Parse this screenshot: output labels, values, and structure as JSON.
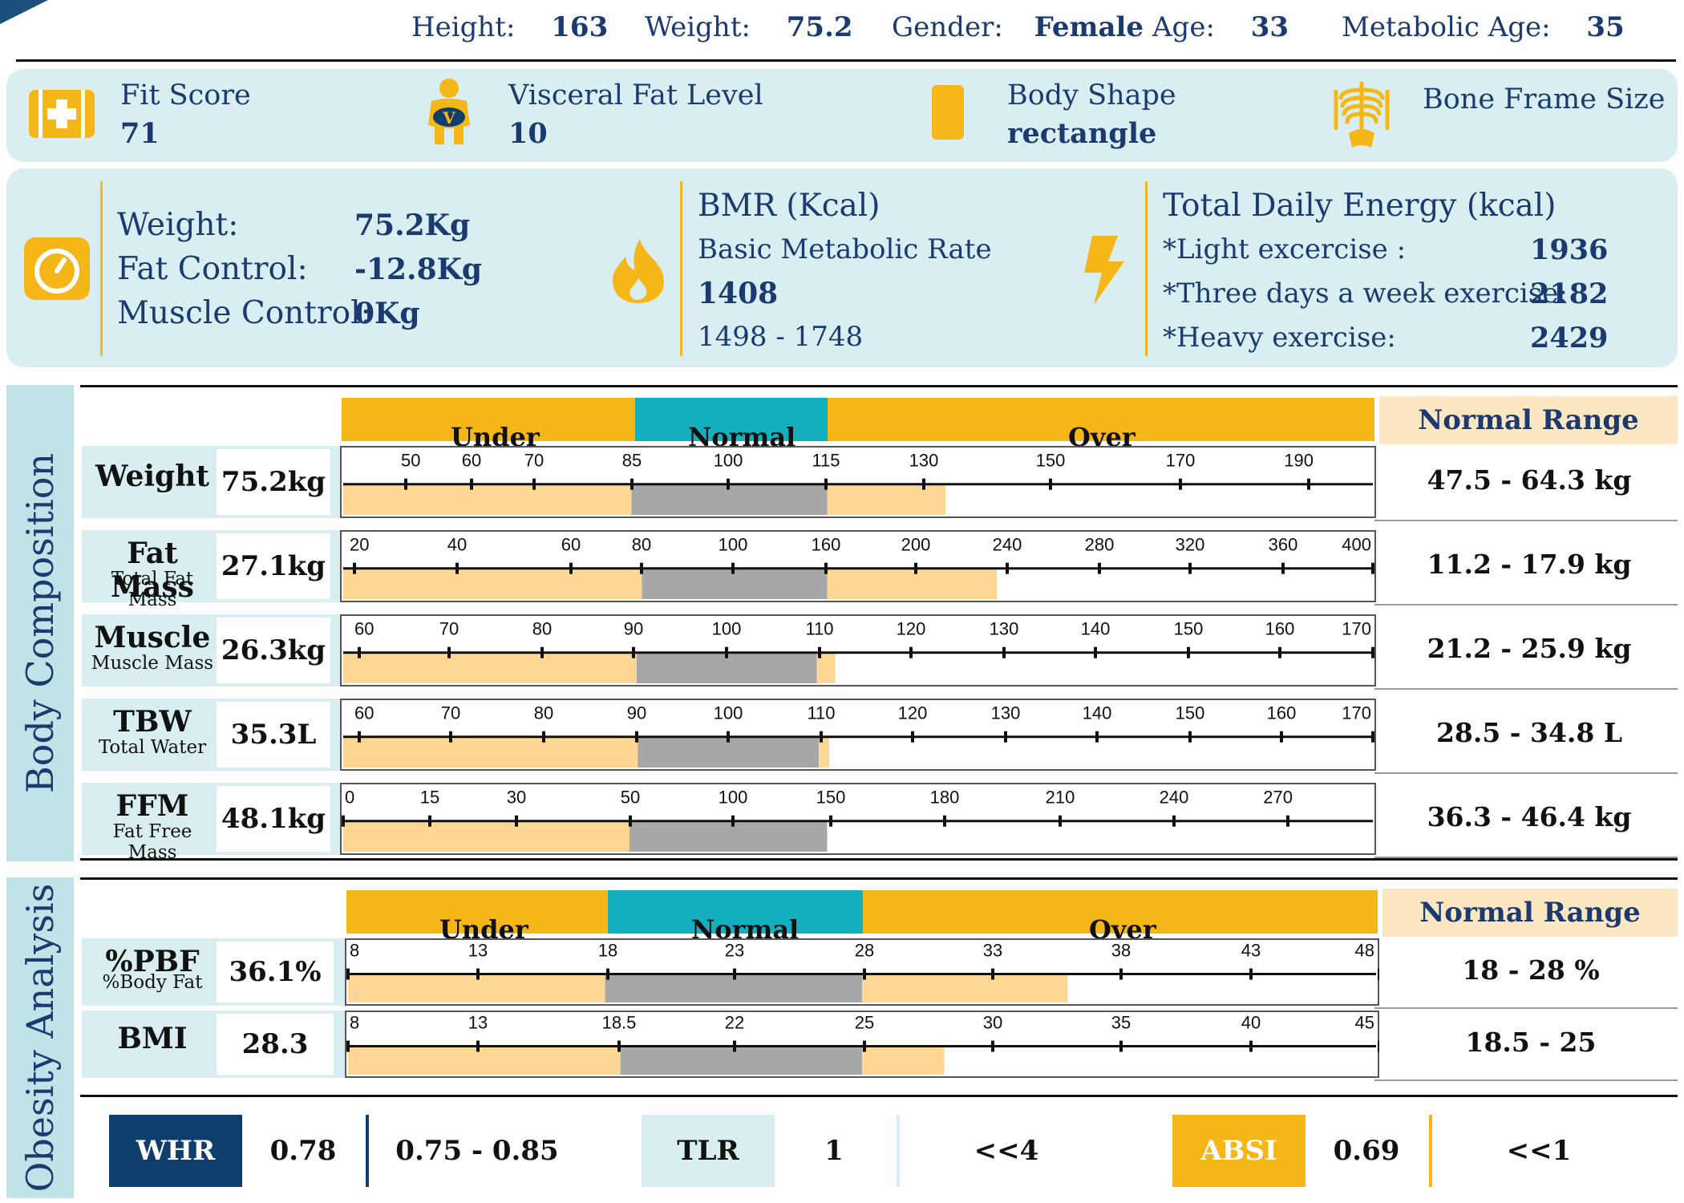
{
  "header": {
    "height_label": "Height:",
    "height": "163",
    "weight_label": "Weight:",
    "weight": "75.2",
    "gender_label": "Gender:",
    "gender": "Female",
    "age_label": "Age:",
    "age": "33",
    "metabolic_age_label": "Metabolic Age:",
    "metabolic_age": "35"
  },
  "summary": {
    "fit_score_label": "Fit Score",
    "fit_score": "71",
    "visceral_label": "Visceral Fat Level",
    "visceral": "10",
    "visceral_badge": "V",
    "body_shape_label": "Body Shape",
    "body_shape": "rectangle",
    "bone_label": "Bone Frame Size"
  },
  "energy": {
    "weight_label": "Weight:",
    "weight": "75.2Kg",
    "fat_control_label": "Fat Control:",
    "fat_control": "-12.8Kg",
    "muscle_control_label": "Muscle Control:",
    "muscle_control": "0Kg",
    "bmr_title": "BMR (Kcal)",
    "bmr_subtitle": "Basic Metabolic Rate",
    "bmr": "1408",
    "bmr_range": "1498 - 1748",
    "tde_title": "Total Daily Energy (kcal)",
    "light_label": "*Light excercise :",
    "light": "1936",
    "three_label": "*Three days a week exercise:",
    "three": "2182",
    "heavy_label": "*Heavy exercise:",
    "heavy": "2429"
  },
  "colors": {
    "under": "#f5b618",
    "normal": "#14b0c0",
    "over": "#f5b618",
    "fill": "#fdd793",
    "normal_fill": "#a7a7a7",
    "navy": "#0e3e6c"
  },
  "body_composition": {
    "title": "Body Composition",
    "band": {
      "under": "Under",
      "normal": "Normal",
      "over": "Over"
    },
    "normal_range_label": "Normal Range",
    "rows": [
      {
        "name": "Weight",
        "sub": "",
        "value": "75.2kg",
        "range": "47.5 - 64.3 kg",
        "ticks": [
          "50",
          "60",
          "70",
          "85",
          "100",
          "115",
          "130",
          "150",
          "170",
          "190"
        ]
      },
      {
        "name": "Fat Mass",
        "sub": "Total Fat Mass",
        "value": "27.1kg",
        "range": "11.2 - 17.9 kg",
        "ticks": [
          "20",
          "40",
          "60",
          "80",
          "100",
          "160",
          "200",
          "240",
          "280",
          "320",
          "360",
          "400"
        ]
      },
      {
        "name": "Muscle",
        "sub": "Muscle Mass",
        "value": "26.3kg",
        "range": "21.2 - 25.9 kg",
        "ticks": [
          "60",
          "70",
          "80",
          "90",
          "100",
          "110",
          "120",
          "130",
          "140",
          "150",
          "160",
          "170"
        ]
      },
      {
        "name": "TBW",
        "sub": "Total Water",
        "value": "35.3L",
        "range": "28.5 - 34.8 L",
        "ticks": [
          "60",
          "70",
          "80",
          "90",
          "100",
          "110",
          "120",
          "130",
          "140",
          "150",
          "160",
          "170"
        ]
      },
      {
        "name": "FFM",
        "sub": "Fat Free Mass",
        "value": "48.1kg",
        "range": "36.3 - 46.4 kg",
        "ticks": [
          "0",
          "15",
          "30",
          "50",
          "100",
          "150",
          "180",
          "210",
          "240",
          "270"
        ]
      }
    ]
  },
  "obesity": {
    "title": "Obesity Analysis",
    "band": {
      "under": "Under",
      "normal": "Normal",
      "over": "Over"
    },
    "normal_range_label": "Normal Range",
    "rows": [
      {
        "name": "%PBF",
        "sub": "%Body Fat",
        "value": "36.1%",
        "range": "18 - 28 %",
        "ticks": [
          "8",
          "13",
          "18",
          "23",
          "28",
          "33",
          "38",
          "43",
          "48"
        ]
      },
      {
        "name": "BMI",
        "sub": "",
        "value": "28.3",
        "range": "18.5 - 25",
        "ticks": [
          "8",
          "13",
          "18.5",
          "22",
          "25",
          "30",
          "35",
          "40",
          "45"
        ]
      }
    ]
  },
  "indices": {
    "whr_label": "WHR",
    "whr": "0.78",
    "whr_range": "0.75 - 0.85",
    "tlr_label": "TLR",
    "tlr": "1",
    "tlr_range": "<<4",
    "absi_label": "ABSI",
    "absi": "0.69",
    "absi_range": "<<1"
  }
}
